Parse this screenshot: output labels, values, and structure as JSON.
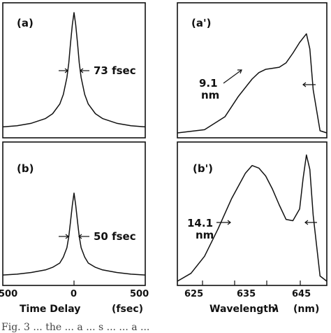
{
  "chart_data": [
    {
      "panel": "(a)",
      "type": "line",
      "annotation": "73 fsec",
      "x": [
        -500,
        -400,
        -300,
        -200,
        -150,
        -100,
        -75,
        -50,
        -37,
        -25,
        -12,
        0,
        12,
        25,
        37,
        50,
        75,
        100,
        150,
        200,
        300,
        400,
        500
      ],
      "y": [
        0.05,
        0.06,
        0.08,
        0.12,
        0.16,
        0.24,
        0.32,
        0.46,
        0.58,
        0.74,
        0.9,
        1.0,
        0.9,
        0.74,
        0.58,
        0.46,
        0.32,
        0.24,
        0.16,
        0.12,
        0.08,
        0.06,
        0.05
      ],
      "xlim": [
        -500,
        500
      ]
    },
    {
      "panel": "(a')",
      "type": "line",
      "annotation_line1": "9.1",
      "annotation_line2": "nm",
      "x": [
        624,
        628,
        631,
        633,
        635,
        636,
        637,
        638,
        639,
        640,
        641,
        642,
        643,
        643.5,
        644,
        645,
        646
      ],
      "y": [
        0.0,
        0.03,
        0.15,
        0.34,
        0.5,
        0.56,
        0.59,
        0.6,
        0.61,
        0.65,
        0.74,
        0.84,
        0.92,
        0.78,
        0.4,
        0.02,
        0.0
      ],
      "xlim": [
        624,
        646
      ]
    },
    {
      "panel": "(b)",
      "type": "line",
      "annotation": "50 fsec",
      "x": [
        -500,
        -400,
        -300,
        -200,
        -150,
        -100,
        -75,
        -50,
        -37,
        -25,
        -12,
        0,
        12,
        25,
        37,
        50,
        75,
        100,
        150,
        200,
        300,
        400,
        500
      ],
      "y": [
        0.04,
        0.05,
        0.07,
        0.1,
        0.13,
        0.18,
        0.25,
        0.36,
        0.49,
        0.66,
        0.86,
        1.0,
        0.86,
        0.66,
        0.49,
        0.36,
        0.25,
        0.18,
        0.13,
        0.1,
        0.07,
        0.05,
        0.04
      ],
      "xlim": [
        -500,
        500
      ],
      "xticks": [
        "500",
        "0",
        "500"
      ],
      "xlabel": "Time Delay",
      "xunit": "(fsec)"
    },
    {
      "panel": "(b')",
      "type": "line",
      "annotation_line1": "14.1",
      "annotation_line2": "nm",
      "x": [
        624,
        626,
        628,
        630,
        632,
        634,
        635,
        636,
        637,
        638,
        639,
        640,
        641,
        642,
        642.5,
        643,
        643.5,
        644,
        645,
        646
      ],
      "y": [
        0.0,
        0.06,
        0.19,
        0.4,
        0.63,
        0.82,
        0.88,
        0.86,
        0.8,
        0.7,
        0.58,
        0.47,
        0.46,
        0.55,
        0.78,
        0.96,
        0.85,
        0.5,
        0.04,
        0.0
      ],
      "xlim": [
        624,
        646
      ],
      "xticks": [
        "625",
        "635",
        "645"
      ],
      "xlabel": "Wavelength",
      "xlabel_symbol": "λ",
      "xunit": "(nm)"
    }
  ],
  "caption_fragment": "Fig. 3   ...   the ... a ... s ... ... a ..."
}
